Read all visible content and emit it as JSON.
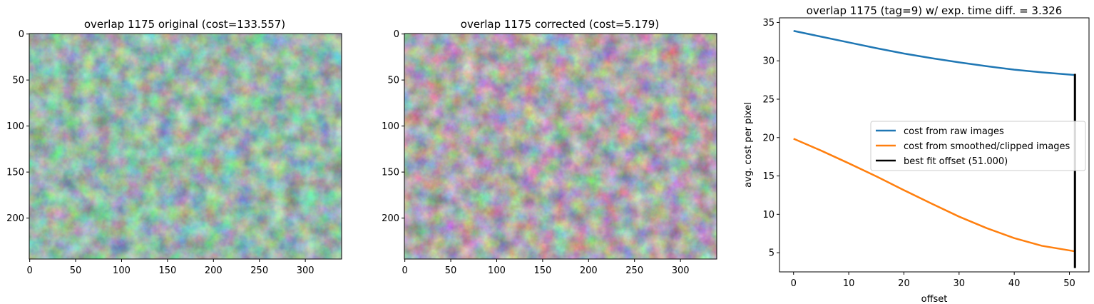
{
  "chart_data": [
    {
      "type": "heatmap",
      "title": "overlap 1175 original (cost=133.557)",
      "image_width": 340,
      "image_height": 245,
      "xticks": [
        "0",
        "50",
        "100",
        "150",
        "200",
        "250",
        "300"
      ],
      "yticks": [
        "0",
        "50",
        "100",
        "150",
        "200"
      ],
      "colormap": "green-gray mottled texture",
      "palette": [
        "#233a33",
        "#4f8574",
        "#9ae6cc"
      ]
    },
    {
      "type": "heatmap",
      "title": "overlap 1175 corrected (cost=5.179)",
      "image_width": 340,
      "image_height": 245,
      "xticks": [
        "0",
        "50",
        "100",
        "150",
        "200",
        "250",
        "300"
      ],
      "yticks": [
        "0",
        "50",
        "100",
        "150",
        "200"
      ],
      "colormap": "gray mottled texture",
      "palette": [
        "#2e2e2e",
        "#7d7a7c",
        "#f2eef0"
      ]
    },
    {
      "type": "line",
      "title": "overlap 1175 (tag=9) w/ exp. time diff. = 3.326",
      "xlabel": "offset",
      "ylabel": "avg. cost per pixel",
      "xlim": [
        -2.55,
        53.55
      ],
      "ylim": [
        2.5,
        35.6
      ],
      "xticks": [
        "0",
        "10",
        "20",
        "30",
        "40",
        "50"
      ],
      "yticks": [
        "5",
        "10",
        "15",
        "20",
        "25",
        "30",
        "35"
      ],
      "legend_position": "center-right",
      "series": [
        {
          "name": "cost from raw images",
          "color": "#1f77b4",
          "x": [
            0,
            5,
            10,
            15,
            20,
            25,
            30,
            35,
            40,
            45,
            51
          ],
          "y": [
            33.9,
            33.15,
            32.4,
            31.65,
            30.95,
            30.35,
            29.8,
            29.3,
            28.85,
            28.5,
            28.15
          ]
        },
        {
          "name": "cost from smoothed/clipped images",
          "color": "#ff7f0e",
          "x": [
            0,
            5,
            10,
            15,
            20,
            25,
            30,
            35,
            40,
            45,
            51
          ],
          "y": [
            19.85,
            18.3,
            16.65,
            14.95,
            13.15,
            11.4,
            9.7,
            8.2,
            6.9,
            5.9,
            5.18
          ]
        }
      ],
      "vline": {
        "name": "best fit offset (51.000)",
        "color": "#000000",
        "x": 51,
        "y_range": [
          3.0,
          28.3
        ]
      }
    }
  ]
}
